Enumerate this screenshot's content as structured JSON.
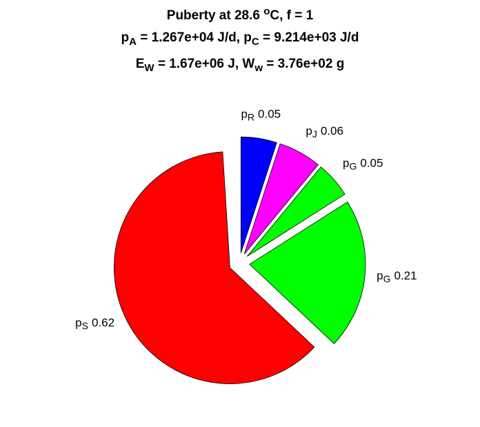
{
  "chart_data": {
    "type": "pie",
    "title_lines": [
      [
        {
          "text": "Puberty at 28.6 "
        },
        {
          "text": "o",
          "sup": true
        },
        {
          "text": "C, f = 1"
        }
      ],
      [
        {
          "text": "p"
        },
        {
          "text": "A",
          "sub": true
        },
        {
          "text": " = 1.267e+04 J/d,  p"
        },
        {
          "text": "C",
          "sub": true
        },
        {
          "text": " = 9.214e+03 J/d"
        }
      ],
      [
        {
          "text": "E"
        },
        {
          "text": "W",
          "sub": true
        },
        {
          "text": " = 1.67e+06 J, W"
        },
        {
          "text": "w",
          "sub": true
        },
        {
          "text": " = 3.76e+02 g"
        }
      ]
    ],
    "labels": [
      [
        {
          "text": "p"
        },
        {
          "text": "R",
          "sub": true
        }
      ],
      [
        {
          "text": "p"
        },
        {
          "text": "J",
          "sub": true
        }
      ],
      [
        {
          "text": "p"
        },
        {
          "text": "G",
          "sub": true
        }
      ],
      [
        {
          "text": "p"
        },
        {
          "text": "G",
          "sub": true
        }
      ],
      [
        {
          "text": "p"
        },
        {
          "text": "S",
          "sub": true
        }
      ]
    ],
    "values": [
      0.05,
      0.06,
      0.05,
      0.21,
      0.62
    ],
    "colors": [
      "#0000ff",
      "#ff00ff",
      "#00ff00",
      "#00ff00",
      "#ff0000"
    ],
    "explode": true
  }
}
